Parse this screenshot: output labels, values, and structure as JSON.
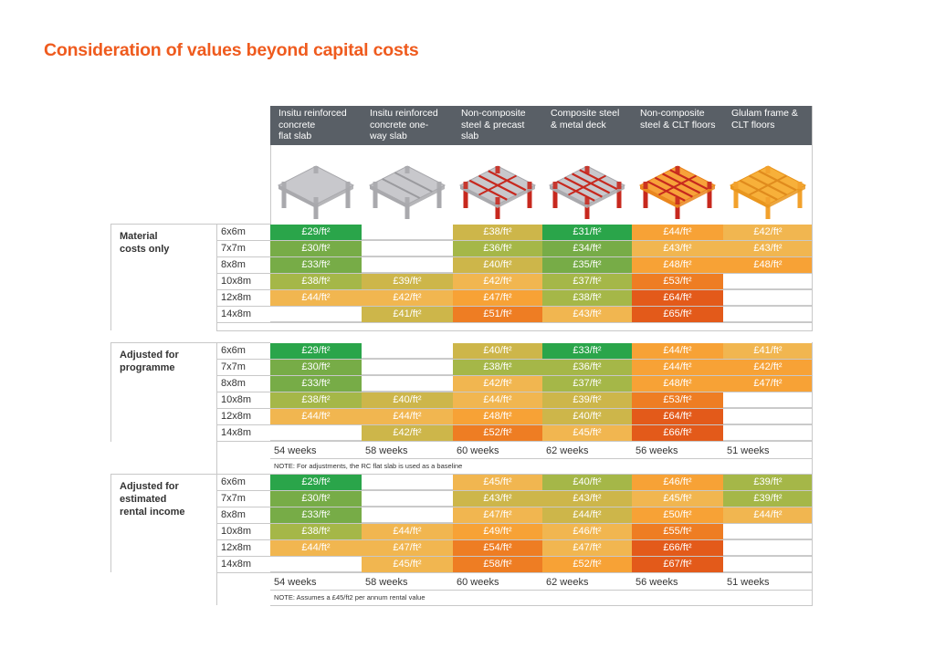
{
  "title": "Consideration of values beyond capital costs",
  "columns": [
    {
      "lines": [
        "Insitu reinforced",
        "concrete",
        "flat slab"
      ],
      "icon": "rc-flat-slab-icon"
    },
    {
      "lines": [
        "Insitu reinforced",
        "concrete one-",
        "way slab"
      ],
      "icon": "rc-one-way-slab-icon"
    },
    {
      "lines": [
        "Non-composite",
        "steel & precast",
        "slab"
      ],
      "icon": "steel-precast-icon"
    },
    {
      "lines": [
        "Composite steel",
        "& metal deck"
      ],
      "icon": "composite-steel-icon"
    },
    {
      "lines": [
        "Non-composite",
        "steel & CLT floors"
      ],
      "icon": "steel-clt-icon"
    },
    {
      "lines": [
        "Glulam frame &",
        "CLT floors"
      ],
      "icon": "glulam-clt-icon"
    }
  ],
  "grid_labels": [
    "6x6m",
    "7x7m",
    "8x8m",
    "10x8m",
    "12x8m",
    "14x8m"
  ],
  "colors": {
    "level_1": "#2aa54a",
    "level_2": "#77ac47",
    "level_3": "#a5b748",
    "level_4": "#cdb64a",
    "level_5": "#f1b650",
    "level_6": "#f7a236",
    "level_7": "#ee7d23",
    "level_8": "#e35a1a",
    "header": "#595f66",
    "title": "#ef5b1e"
  },
  "sections": [
    {
      "label": [
        "Material",
        "costs only"
      ],
      "rows": [
        [
          [
            "£29/ft²",
            "level_1"
          ],
          [
            "",
            ""
          ],
          [
            "£38/ft²",
            "level_4"
          ],
          [
            "£31/ft²",
            "level_1"
          ],
          [
            "£44/ft²",
            "level_6"
          ],
          [
            "£42/ft²",
            "level_5"
          ]
        ],
        [
          [
            "£30/ft²",
            "level_2"
          ],
          [
            "",
            ""
          ],
          [
            "£36/ft²",
            "level_3"
          ],
          [
            "£34/ft²",
            "level_2"
          ],
          [
            "£43/ft²",
            "level_5"
          ],
          [
            "£43/ft²",
            "level_5"
          ]
        ],
        [
          [
            "£33/ft²",
            "level_2"
          ],
          [
            "",
            ""
          ],
          [
            "£40/ft²",
            "level_4"
          ],
          [
            "£35/ft²",
            "level_2"
          ],
          [
            "£48/ft²",
            "level_6"
          ],
          [
            "£48/ft²",
            "level_6"
          ]
        ],
        [
          [
            "£38/ft²",
            "level_3"
          ],
          [
            "£39/ft²",
            "level_4"
          ],
          [
            "£42/ft²",
            "level_5"
          ],
          [
            "£37/ft²",
            "level_3"
          ],
          [
            "£53/ft²",
            "level_7"
          ],
          [
            "",
            ""
          ]
        ],
        [
          [
            "£44/ft²",
            "level_5"
          ],
          [
            "£42/ft²",
            "level_5"
          ],
          [
            "£47/ft²",
            "level_6"
          ],
          [
            "£38/ft²",
            "level_3"
          ],
          [
            "£64/ft²",
            "level_8"
          ],
          [
            "",
            ""
          ]
        ],
        [
          [
            "",
            ""
          ],
          [
            "£41/ft²",
            "level_4"
          ],
          [
            "£51/ft²",
            "level_7"
          ],
          [
            "£43/ft²",
            "level_5"
          ],
          [
            "£65/ft²",
            "level_8"
          ],
          [
            "",
            ""
          ]
        ]
      ]
    },
    {
      "label": [
        "Adjusted for",
        "programme"
      ],
      "rows": [
        [
          [
            "£29/ft²",
            "level_1"
          ],
          [
            "",
            ""
          ],
          [
            "£40/ft²",
            "level_4"
          ],
          [
            "£33/ft²",
            "level_1"
          ],
          [
            "£44/ft²",
            "level_6"
          ],
          [
            "£41/ft²",
            "level_5"
          ]
        ],
        [
          [
            "£30/ft²",
            "level_2"
          ],
          [
            "",
            ""
          ],
          [
            "£38/ft²",
            "level_3"
          ],
          [
            "£36/ft²",
            "level_3"
          ],
          [
            "£44/ft²",
            "level_6"
          ],
          [
            "£42/ft²",
            "level_6"
          ]
        ],
        [
          [
            "£33/ft²",
            "level_2"
          ],
          [
            "",
            ""
          ],
          [
            "£42/ft²",
            "level_5"
          ],
          [
            "£37/ft²",
            "level_3"
          ],
          [
            "£48/ft²",
            "level_6"
          ],
          [
            "£47/ft²",
            "level_6"
          ]
        ],
        [
          [
            "£38/ft²",
            "level_3"
          ],
          [
            "£40/ft²",
            "level_4"
          ],
          [
            "£44/ft²",
            "level_5"
          ],
          [
            "£39/ft²",
            "level_4"
          ],
          [
            "£53/ft²",
            "level_7"
          ],
          [
            "",
            ""
          ]
        ],
        [
          [
            "£44/ft²",
            "level_5"
          ],
          [
            "£44/ft²",
            "level_5"
          ],
          [
            "£48/ft²",
            "level_6"
          ],
          [
            "£40/ft²",
            "level_4"
          ],
          [
            "£64/ft²",
            "level_8"
          ],
          [
            "",
            ""
          ]
        ],
        [
          [
            "",
            ""
          ],
          [
            "£42/ft²",
            "level_4"
          ],
          [
            "£52/ft²",
            "level_7"
          ],
          [
            "£45/ft²",
            "level_5"
          ],
          [
            "£66/ft²",
            "level_8"
          ],
          [
            "",
            ""
          ]
        ]
      ],
      "weeks": [
        "54 weeks",
        "58 weeks",
        "60 weeks",
        "62 weeks",
        "56 weeks",
        "51 weeks"
      ],
      "note": "NOTE: For adjustments, the RC flat slab is used as a baseline"
    },
    {
      "label": [
        "Adjusted for",
        "estimated",
        "rental income"
      ],
      "rows": [
        [
          [
            "£29/ft²",
            "level_1"
          ],
          [
            "",
            ""
          ],
          [
            "£45/ft²",
            "level_5"
          ],
          [
            "£40/ft²",
            "level_3"
          ],
          [
            "£46/ft²",
            "level_6"
          ],
          [
            "£39/ft²",
            "level_3"
          ]
        ],
        [
          [
            "£30/ft²",
            "level_2"
          ],
          [
            "",
            ""
          ],
          [
            "£43/ft²",
            "level_4"
          ],
          [
            "£43/ft²",
            "level_4"
          ],
          [
            "£45/ft²",
            "level_5"
          ],
          [
            "£39/ft²",
            "level_3"
          ]
        ],
        [
          [
            "£33/ft²",
            "level_2"
          ],
          [
            "",
            ""
          ],
          [
            "£47/ft²",
            "level_5"
          ],
          [
            "£44/ft²",
            "level_4"
          ],
          [
            "£50/ft²",
            "level_6"
          ],
          [
            "£44/ft²",
            "level_5"
          ]
        ],
        [
          [
            "£38/ft²",
            "level_3"
          ],
          [
            "£44/ft²",
            "level_5"
          ],
          [
            "£49/ft²",
            "level_6"
          ],
          [
            "£46/ft²",
            "level_5"
          ],
          [
            "£55/ft²",
            "level_7"
          ],
          [
            "",
            ""
          ]
        ],
        [
          [
            "£44/ft²",
            "level_5"
          ],
          [
            "£47/ft²",
            "level_5"
          ],
          [
            "£54/ft²",
            "level_7"
          ],
          [
            "£47/ft²",
            "level_5"
          ],
          [
            "£66/ft²",
            "level_8"
          ],
          [
            "",
            ""
          ]
        ],
        [
          [
            "",
            ""
          ],
          [
            "£45/ft²",
            "level_5"
          ],
          [
            "£58/ft²",
            "level_7"
          ],
          [
            "£52/ft²",
            "level_6"
          ],
          [
            "£67/ft²",
            "level_8"
          ],
          [
            "",
            ""
          ]
        ]
      ],
      "weeks": [
        "54 weeks",
        "58 weeks",
        "60 weeks",
        "62 weeks",
        "56 weeks",
        "51 weeks"
      ],
      "note": "NOTE: Assumes a £45/ft2 per annum rental value"
    }
  ]
}
